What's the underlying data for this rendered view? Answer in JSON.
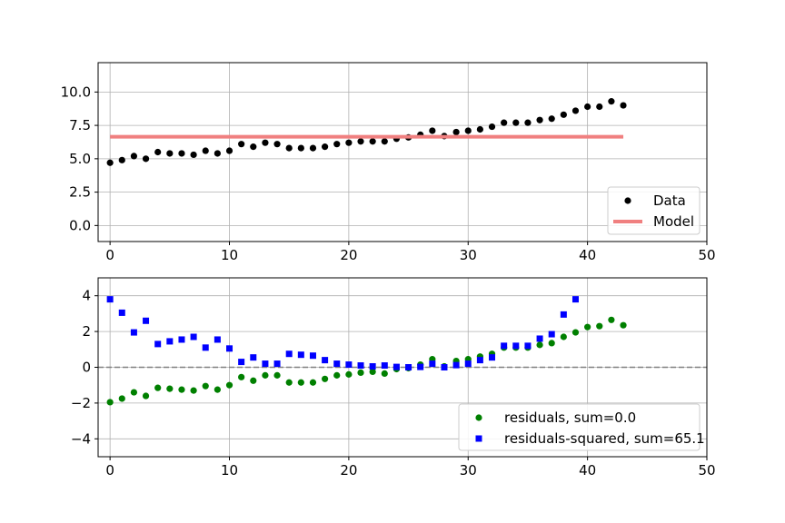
{
  "chart_data": [
    {
      "type": "scatter",
      "title": "",
      "xlabel": "",
      "ylabel": "",
      "xlim": [
        -1,
        50
      ],
      "ylim": [
        -1.2,
        12.2
      ],
      "xticks": [
        "0",
        "10",
        "20",
        "30",
        "40",
        "50"
      ],
      "yticks": [
        "0.0",
        "2.5",
        "5.0",
        "7.5",
        "10.0"
      ],
      "grid": true,
      "legend_position": "lower-right",
      "series": [
        {
          "name": "Data",
          "kind": "scatter",
          "marker": "circle",
          "color": "#000000",
          "x": [
            0,
            1,
            2,
            3,
            4,
            5,
            6,
            7,
            8,
            9,
            10,
            11,
            12,
            13,
            14,
            15,
            16,
            17,
            18,
            19,
            20,
            21,
            22,
            23,
            24,
            25,
            26,
            27,
            28,
            29,
            30,
            31,
            32,
            33,
            34,
            35,
            36,
            37,
            38,
            39,
            40,
            41,
            42,
            43
          ],
          "y": [
            4.7,
            4.9,
            5.2,
            5.0,
            5.5,
            5.4,
            5.4,
            5.3,
            5.6,
            5.4,
            5.6,
            6.1,
            5.9,
            6.2,
            6.1,
            5.8,
            5.8,
            5.8,
            5.9,
            6.1,
            6.2,
            6.3,
            6.3,
            6.3,
            6.5,
            6.6,
            6.8,
            7.1,
            6.7,
            7.0,
            7.1,
            7.2,
            7.4,
            7.7,
            7.7,
            7.7,
            7.9,
            8.0,
            8.3,
            8.6,
            8.9,
            8.9,
            9.3,
            9.0
          ]
        },
        {
          "name": "Model",
          "kind": "line",
          "color": "#f08080",
          "x": [
            0,
            43
          ],
          "y": [
            6.65,
            6.65
          ]
        }
      ]
    },
    {
      "type": "scatter",
      "title": "",
      "xlabel": "",
      "ylabel": "",
      "xlim": [
        -1,
        50
      ],
      "ylim": [
        -5,
        5
      ],
      "xticks": [
        "0",
        "10",
        "20",
        "30",
        "40",
        "50"
      ],
      "yticks": [
        "−4",
        "−2",
        "0",
        "2",
        "4"
      ],
      "grid": true,
      "reference_line": {
        "y": 0,
        "style": "dashed",
        "color": "#808080"
      },
      "legend_position": "lower-right",
      "series": [
        {
          "name": "residuals, sum=0.0",
          "kind": "scatter",
          "marker": "circle",
          "color": "#008000",
          "x": [
            0,
            1,
            2,
            3,
            4,
            5,
            6,
            7,
            8,
            9,
            10,
            11,
            12,
            13,
            14,
            15,
            16,
            17,
            18,
            19,
            20,
            21,
            22,
            23,
            24,
            25,
            26,
            27,
            28,
            29,
            30,
            31,
            32,
            33,
            34,
            35,
            36,
            37,
            38,
            39,
            40,
            41,
            42,
            43
          ],
          "y": [
            -1.95,
            -1.75,
            -1.4,
            -1.6,
            -1.15,
            -1.2,
            -1.25,
            -1.3,
            -1.05,
            -1.25,
            -1.0,
            -0.55,
            -0.75,
            -0.45,
            -0.45,
            -0.85,
            -0.85,
            -0.85,
            -0.65,
            -0.45,
            -0.4,
            -0.3,
            -0.25,
            -0.35,
            -0.1,
            -0.05,
            0.15,
            0.45,
            0.05,
            0.35,
            0.45,
            0.6,
            0.75,
            1.1,
            1.1,
            1.1,
            1.25,
            1.35,
            1.7,
            1.95,
            2.25,
            2.3,
            2.65,
            2.35
          ]
        },
        {
          "name": "residuals-squared, sum=65.1",
          "kind": "scatter",
          "marker": "square",
          "color": "#0000ff",
          "x": [
            0,
            1,
            2,
            3,
            4,
            5,
            6,
            7,
            8,
            9,
            10,
            11,
            12,
            13,
            14,
            15,
            16,
            17,
            18,
            19,
            20,
            21,
            22,
            23,
            24,
            25,
            26,
            27,
            28,
            29,
            30,
            31,
            32,
            33,
            34,
            35,
            36,
            37,
            38,
            39
          ],
          "y": [
            3.8,
            3.05,
            1.95,
            2.6,
            1.3,
            1.45,
            1.55,
            1.7,
            1.1,
            1.55,
            1.05,
            0.3,
            0.55,
            0.2,
            0.2,
            0.75,
            0.7,
            0.65,
            0.4,
            0.2,
            0.15,
            0.1,
            0.05,
            0.1,
            0.02,
            0.0,
            0.02,
            0.2,
            0.0,
            0.12,
            0.2,
            0.4,
            0.55,
            1.2,
            1.2,
            1.2,
            1.6,
            1.85,
            2.95,
            3.8
          ]
        }
      ]
    }
  ]
}
